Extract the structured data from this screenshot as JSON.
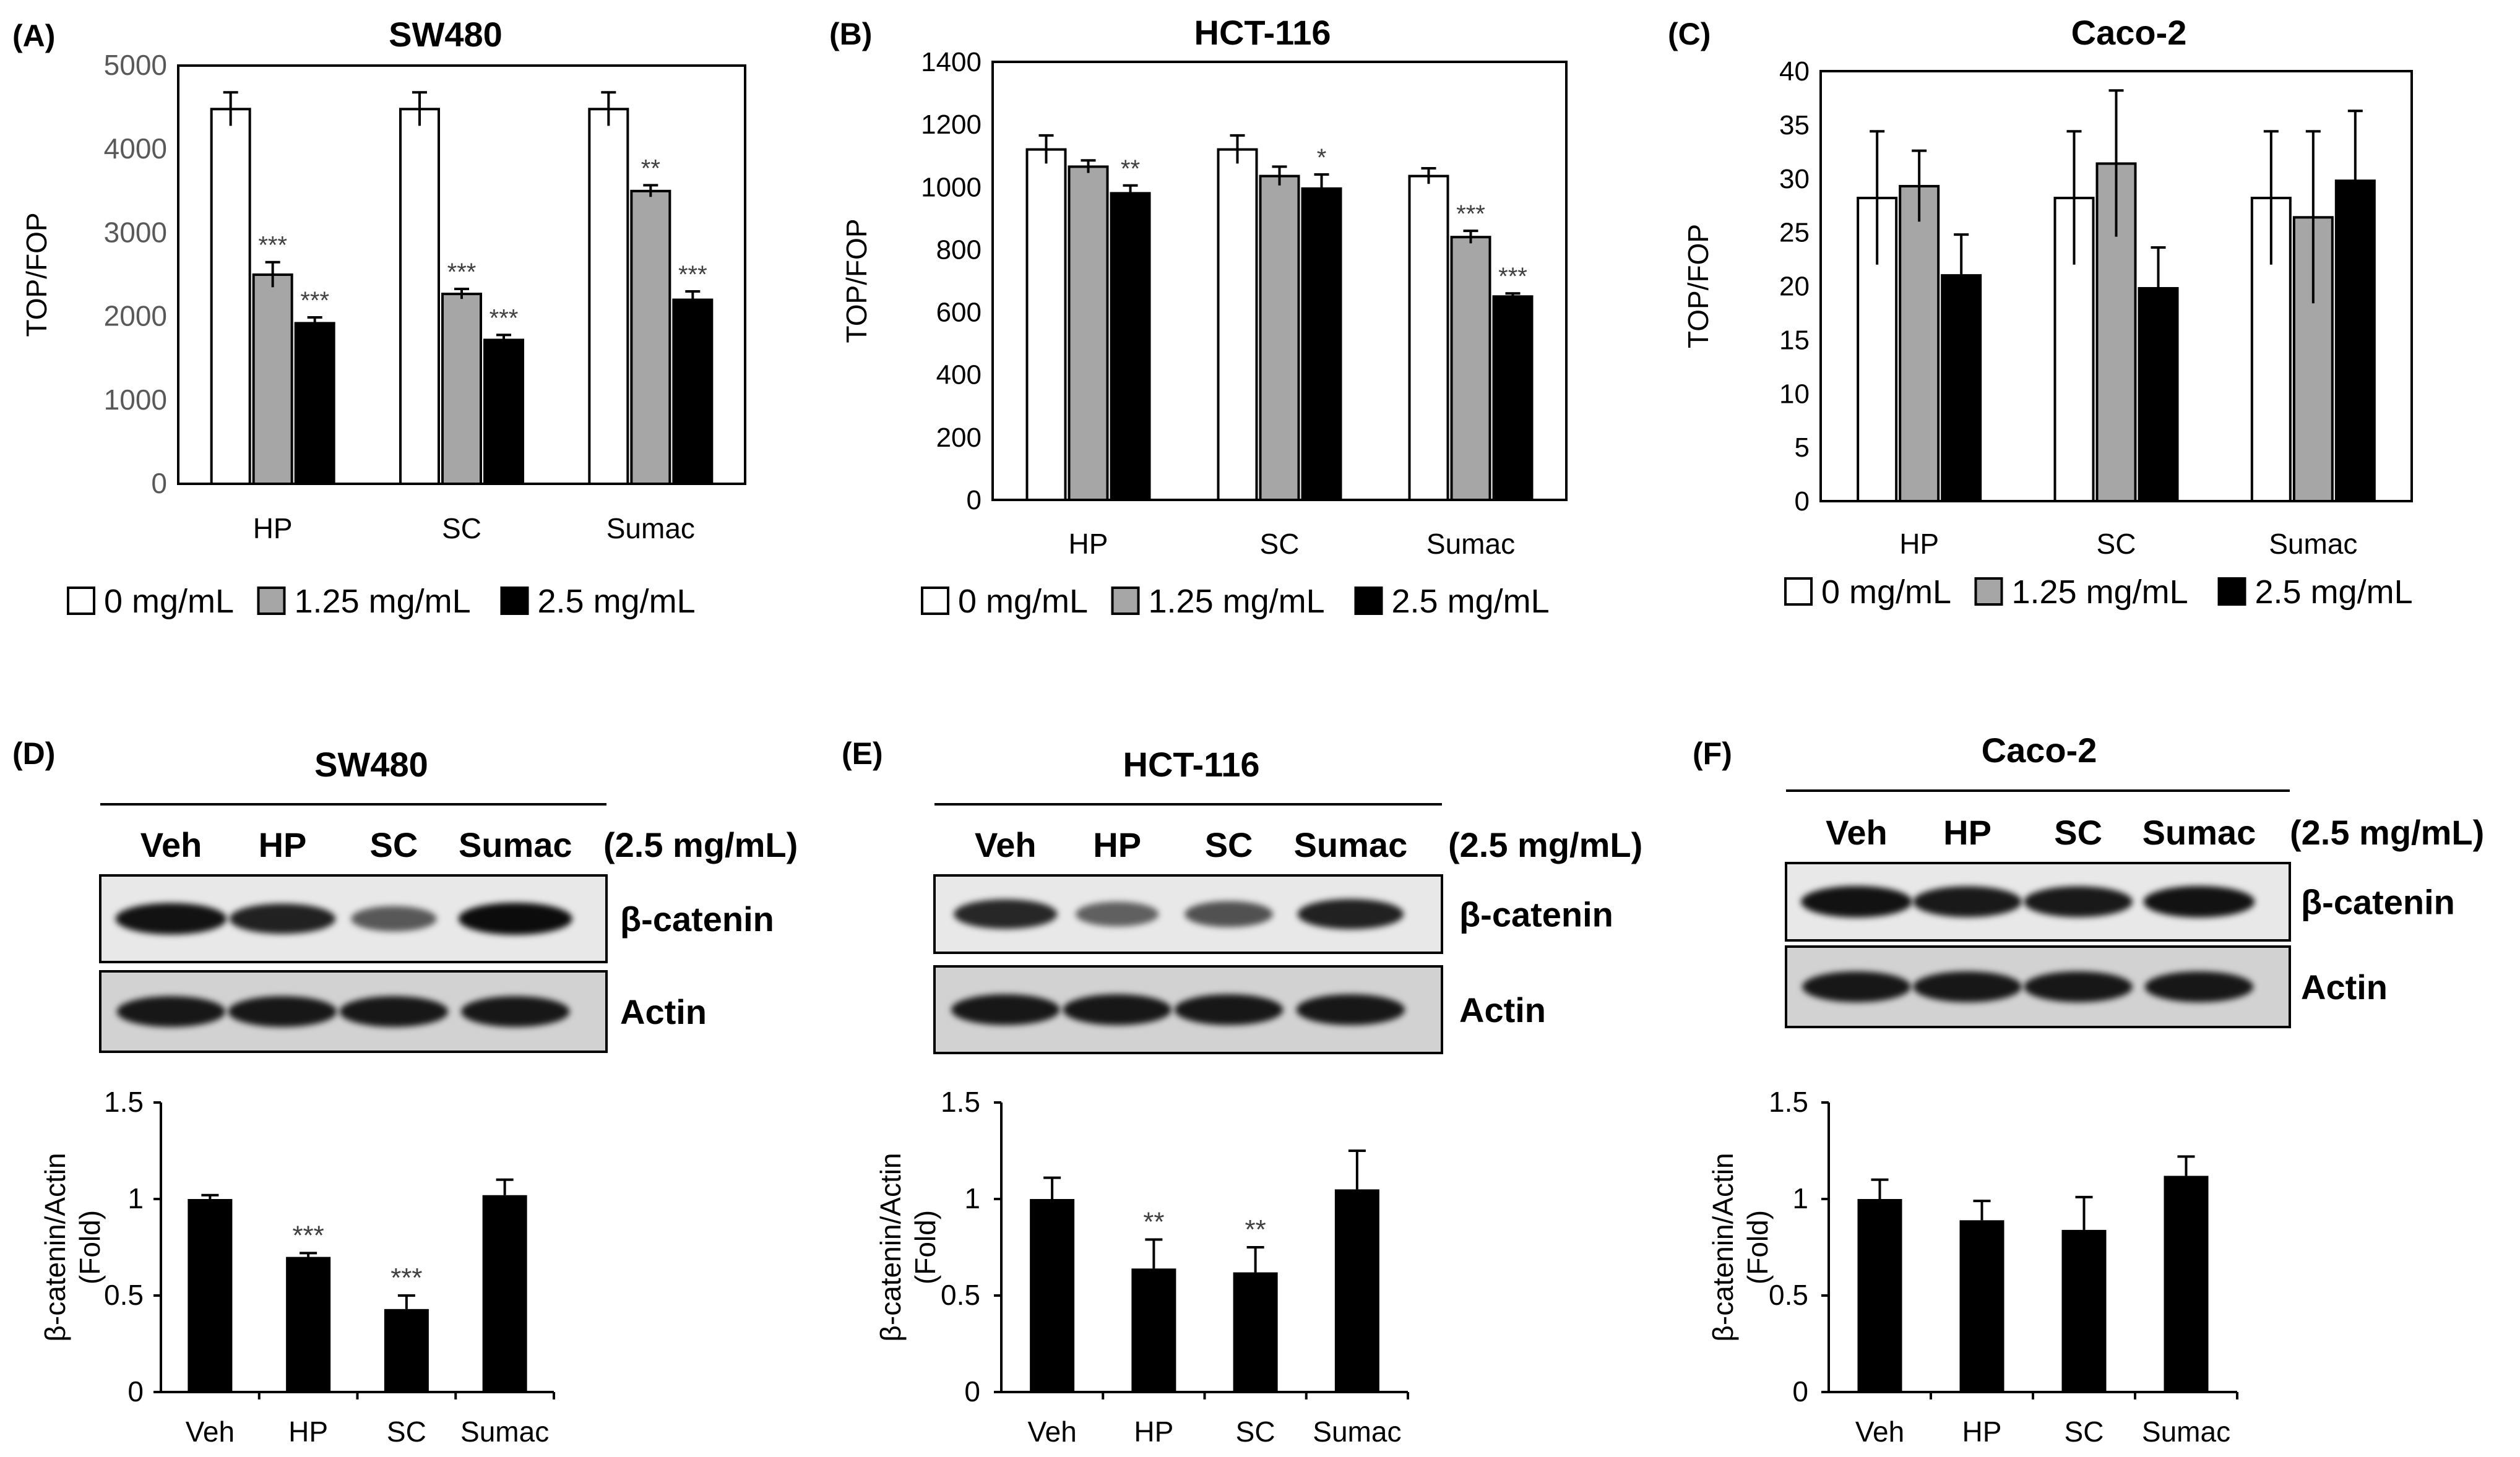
{
  "figure": "six-panel figure: TOP/FOP reporter assays and beta-catenin western blots",
  "legend": {
    "labels": [
      "0 mg/mL",
      "1.25 mg/mL",
      "2.5 mg/mL"
    ],
    "colors": [
      "#ffffff",
      "#a6a6a6",
      "#000000"
    ]
  },
  "chart_data": [
    {
      "type": "bar",
      "panel": "(A)",
      "title": "SW480",
      "ylabel": "TOP/FOP",
      "categories": [
        "HP",
        "SC",
        "Sumac"
      ],
      "ylim": [
        0,
        5000
      ],
      "yticks": [
        0,
        1000,
        2000,
        3000,
        4000,
        5000
      ],
      "series": [
        {
          "name": "0 mg/mL",
          "values": [
            4480,
            4480,
            4480
          ],
          "errors": [
            200,
            200,
            200
          ]
        },
        {
          "name": "1.25 mg/mL",
          "values": [
            2500,
            2270,
            3500
          ],
          "errors": [
            150,
            60,
            70
          ]
        },
        {
          "name": "2.5 mg/mL",
          "values": [
            1920,
            1720,
            2200
          ],
          "errors": [
            70,
            60,
            100
          ]
        }
      ],
      "annotations": [
        [
          "",
          "***",
          "***"
        ],
        [
          "",
          "***",
          "***"
        ],
        [
          "",
          "**",
          "***"
        ]
      ]
    },
    {
      "type": "bar",
      "panel": "(B)",
      "title": "HCT-116",
      "ylabel": "TOP/FOP",
      "categories": [
        "HP",
        "SC",
        "Sumac"
      ],
      "ylim": [
        0,
        1400
      ],
      "yticks": [
        0,
        200,
        400,
        600,
        800,
        1000,
        1200,
        1400
      ],
      "series": [
        {
          "name": "0 mg/mL",
          "values": [
            1120,
            1120,
            1035
          ],
          "errors": [
            45,
            45,
            25
          ]
        },
        {
          "name": "1.25 mg/mL",
          "values": [
            1065,
            1035,
            840
          ],
          "errors": [
            20,
            30,
            20
          ]
        },
        {
          "name": "2.5 mg/mL",
          "values": [
            980,
            995,
            650
          ],
          "errors": [
            25,
            45,
            10
          ]
        }
      ],
      "annotations": [
        [
          "",
          "",
          "**"
        ],
        [
          "",
          "",
          "*"
        ],
        [
          "",
          "***",
          "***"
        ]
      ]
    },
    {
      "type": "bar",
      "panel": "(C)",
      "title": "Caco-2",
      "ylabel": "TOP/FOP",
      "categories": [
        "HP",
        "SC",
        "Sumac"
      ],
      "ylim": [
        0,
        40
      ],
      "yticks": [
        0,
        5,
        10,
        15,
        20,
        25,
        30,
        35,
        40
      ],
      "series": [
        {
          "name": "0 mg/mL",
          "values": [
            28.2,
            28.2,
            28.2
          ],
          "errors": [
            6.2,
            6.2,
            6.2
          ]
        },
        {
          "name": "1.25 mg/mL",
          "values": [
            29.3,
            31.4,
            26.4
          ],
          "errors": [
            3.3,
            6.8,
            8
          ]
        },
        {
          "name": "2.5 mg/mL",
          "values": [
            21,
            19.8,
            29.8
          ],
          "errors": [
            3.8,
            3.8,
            6.5
          ]
        }
      ],
      "annotations": [
        [
          "",
          "",
          ""
        ],
        [
          "",
          "",
          ""
        ],
        [
          "",
          "",
          ""
        ]
      ]
    },
    {
      "type": "bar",
      "panel": "(D)",
      "title": "SW480",
      "ylabel": "β-catenin/Actin\n(Fold)",
      "categories": [
        "Veh",
        "HP",
        "SC",
        "Sumac"
      ],
      "ylim": [
        0,
        1.5
      ],
      "yticks": [
        0,
        0.5,
        1,
        1.5
      ],
      "values": [
        1.0,
        0.7,
        0.43,
        1.02
      ],
      "errors": [
        0.02,
        0.02,
        0.07,
        0.08
      ],
      "annotations": [
        "",
        "***",
        "***",
        ""
      ]
    },
    {
      "type": "bar",
      "panel": "(E)",
      "title": "HCT-116",
      "ylabel": "β-catenin/Actin\n(Fold)",
      "categories": [
        "Veh",
        "HP",
        "SC",
        "Sumac"
      ],
      "ylim": [
        0,
        1.5
      ],
      "yticks": [
        0,
        0.5,
        1,
        1.5
      ],
      "values": [
        1.0,
        0.64,
        0.62,
        1.05
      ],
      "errors": [
        0.11,
        0.15,
        0.13,
        0.2
      ],
      "annotations": [
        "",
        "**",
        "**",
        ""
      ]
    },
    {
      "type": "bar",
      "panel": "(F)",
      "title": "Caco-2",
      "ylabel": "β-catenin/Actin\n(Fold)",
      "categories": [
        "Veh",
        "HP",
        "SC",
        "Sumac"
      ],
      "ylim": [
        0,
        1.5
      ],
      "yticks": [
        0,
        0.5,
        1,
        1.5
      ],
      "values": [
        1.0,
        0.89,
        0.84,
        1.12
      ],
      "errors": [
        0.1,
        0.1,
        0.17,
        0.1
      ],
      "annotations": [
        "",
        "",
        "",
        ""
      ]
    }
  ],
  "blots": [
    {
      "panel": "(D)",
      "title": "SW480",
      "lanes": [
        "Veh",
        "HP",
        "SC",
        "Sumac"
      ],
      "dose": "(2.5 mg/mL)",
      "rows": [
        {
          "label": "β-catenin",
          "intensities": [
            0.95,
            0.85,
            0.45,
            1.0
          ]
        },
        {
          "label": "Actin",
          "intensities": [
            0.9,
            0.9,
            0.9,
            0.9
          ]
        }
      ]
    },
    {
      "panel": "(E)",
      "title": "HCT-116",
      "lanes": [
        "Veh",
        "HP",
        "SC",
        "Sumac"
      ],
      "dose": "(2.5 mg/mL)",
      "rows": [
        {
          "label": "β-catenin",
          "intensities": [
            0.8,
            0.4,
            0.5,
            0.85
          ]
        },
        {
          "label": "Actin",
          "intensities": [
            0.9,
            0.9,
            0.9,
            0.9
          ]
        }
      ]
    },
    {
      "panel": "(F)",
      "title": "Caco-2",
      "lanes": [
        "Veh",
        "HP",
        "SC",
        "Sumac"
      ],
      "dose": "(2.5 mg/mL)",
      "rows": [
        {
          "label": "β-catenin",
          "intensities": [
            0.95,
            0.9,
            0.9,
            0.95
          ]
        },
        {
          "label": "Actin",
          "intensities": [
            0.9,
            0.9,
            0.9,
            0.9
          ]
        }
      ]
    }
  ]
}
